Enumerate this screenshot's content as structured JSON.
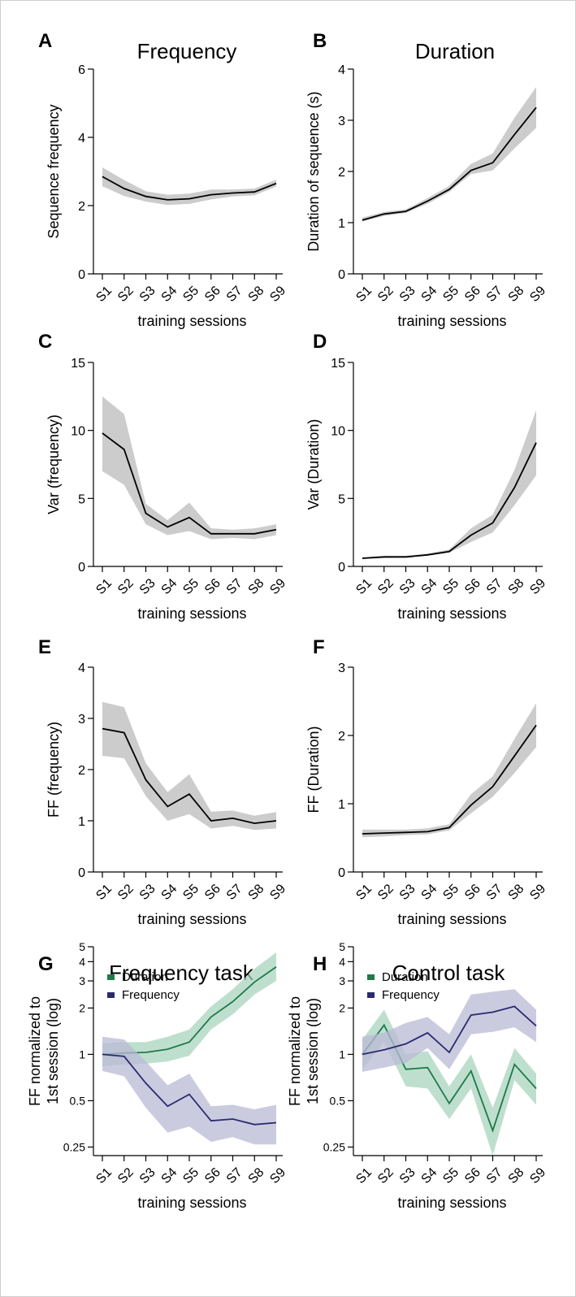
{
  "sessions": [
    "S1",
    "S2",
    "S3",
    "S4",
    "S5",
    "S6",
    "S7",
    "S8",
    "S9"
  ],
  "colors": {
    "mean_line": "#000000",
    "ci_band": "#cccccc",
    "duration": "#1f7a4a",
    "duration_band": "#a9d4bd",
    "frequency": "#2b2a6e",
    "frequency_band": "#b9b9d6"
  },
  "chart_data": [
    {
      "panel": "A",
      "type": "area",
      "title": "Frequency",
      "xlabel": "training sessions",
      "ylabel": "Sequence frequency",
      "ylim": [
        0,
        6
      ],
      "yticks": [
        "0",
        "2",
        "4",
        "6"
      ],
      "series": [
        {
          "values": [
            2.85,
            2.5,
            2.27,
            2.17,
            2.2,
            2.32,
            2.37,
            2.4,
            2.65
          ],
          "lower": [
            2.57,
            2.28,
            2.12,
            2.02,
            2.05,
            2.18,
            2.27,
            2.3,
            2.56
          ],
          "upper": [
            3.12,
            2.75,
            2.42,
            2.32,
            2.35,
            2.47,
            2.47,
            2.5,
            2.76
          ]
        }
      ]
    },
    {
      "panel": "B",
      "type": "area",
      "title": "Duration",
      "xlabel": "training sessions",
      "ylabel": "Duration of sequence (s)",
      "ylim": [
        0,
        4
      ],
      "yticks": [
        "0",
        "1",
        "2",
        "3",
        "4"
      ],
      "series": [
        {
          "values": [
            1.05,
            1.17,
            1.22,
            1.42,
            1.65,
            2.02,
            2.17,
            2.72,
            3.25
          ],
          "lower": [
            1.02,
            1.13,
            1.19,
            1.37,
            1.6,
            1.95,
            2.02,
            2.45,
            2.85
          ],
          "upper": [
            1.1,
            1.21,
            1.26,
            1.48,
            1.72,
            2.15,
            2.35,
            3.05,
            3.65
          ]
        }
      ]
    },
    {
      "panel": "C",
      "type": "area",
      "title": "",
      "xlabel": "training sessions",
      "ylabel": "Var (frequency)",
      "ylim": [
        0,
        15
      ],
      "yticks": [
        "0",
        "5",
        "10",
        "15"
      ],
      "series": [
        {
          "values": [
            9.8,
            8.6,
            3.9,
            2.9,
            3.6,
            2.4,
            2.4,
            2.4,
            2.7
          ],
          "lower": [
            7.0,
            6.0,
            3.1,
            2.3,
            2.6,
            2.0,
            2.1,
            2.0,
            2.3
          ],
          "upper": [
            12.5,
            11.2,
            4.6,
            3.4,
            4.7,
            2.8,
            2.7,
            2.8,
            3.1
          ]
        }
      ]
    },
    {
      "panel": "D",
      "type": "area",
      "title": "",
      "xlabel": "training sessions",
      "ylabel": "Var (Duration)",
      "ylim": [
        0,
        15
      ],
      "yticks": [
        "0",
        "5",
        "10",
        "15"
      ],
      "series": [
        {
          "values": [
            0.6,
            0.7,
            0.7,
            0.85,
            1.1,
            2.3,
            3.2,
            5.8,
            9.1
          ],
          "lower": [
            0.55,
            0.62,
            0.64,
            0.78,
            1.0,
            1.8,
            2.5,
            4.5,
            6.7
          ],
          "upper": [
            0.68,
            0.78,
            0.78,
            0.95,
            1.25,
            2.8,
            3.8,
            7.1,
            11.5
          ]
        }
      ]
    },
    {
      "panel": "E",
      "type": "area",
      "title": "",
      "xlabel": "training sessions",
      "ylabel": "FF (frequency)",
      "ylim": [
        0,
        4
      ],
      "yticks": [
        "0",
        "1",
        "2",
        "3",
        "4"
      ],
      "series": [
        {
          "values": [
            2.8,
            2.72,
            1.8,
            1.28,
            1.52,
            1.0,
            1.05,
            0.95,
            1.0
          ],
          "lower": [
            2.27,
            2.22,
            1.48,
            1.0,
            1.13,
            0.85,
            0.9,
            0.82,
            0.85
          ],
          "upper": [
            3.32,
            3.22,
            2.12,
            1.56,
            1.91,
            1.18,
            1.2,
            1.1,
            1.17
          ]
        }
      ]
    },
    {
      "panel": "F",
      "type": "area",
      "title": "",
      "xlabel": "training sessions",
      "ylabel": "FF (Duration)",
      "ylim": [
        0,
        3
      ],
      "yticks": [
        "0",
        "1",
        "2",
        "3"
      ],
      "series": [
        {
          "values": [
            0.56,
            0.57,
            0.58,
            0.59,
            0.65,
            0.98,
            1.25,
            1.7,
            2.15
          ],
          "lower": [
            0.51,
            0.52,
            0.54,
            0.55,
            0.61,
            0.86,
            1.1,
            1.45,
            1.83
          ],
          "upper": [
            0.62,
            0.62,
            0.62,
            0.64,
            0.7,
            1.14,
            1.4,
            1.95,
            2.47
          ]
        }
      ]
    },
    {
      "panel": "G",
      "type": "area",
      "title": "Frequency task",
      "xlabel": "training sessions",
      "ylabel": "FF normalized to\n1st session (log)",
      "yscale": "log",
      "ylim": [
        0.22,
        5
      ],
      "yticks": [
        0.25,
        0.5,
        1,
        2,
        3,
        4,
        5
      ],
      "yticklabels": [
        "0.25",
        "0.5",
        "1",
        "2",
        "3",
        "4",
        "5"
      ],
      "legend": {
        "placement": "top-left"
      },
      "series": [
        {
          "name": "Duration",
          "color": "duration",
          "values": [
            1.0,
            1.02,
            1.03,
            1.08,
            1.2,
            1.75,
            2.2,
            2.95,
            3.7
          ],
          "lower": [
            0.84,
            0.86,
            0.87,
            0.9,
            0.98,
            1.45,
            1.82,
            2.45,
            3.0
          ],
          "upper": [
            1.18,
            1.2,
            1.2,
            1.3,
            1.45,
            2.05,
            2.65,
            3.6,
            4.6
          ]
        },
        {
          "name": "Frequency",
          "color": "frequency",
          "values": [
            1.0,
            0.97,
            0.65,
            0.46,
            0.55,
            0.37,
            0.38,
            0.35,
            0.36
          ],
          "lower": [
            0.78,
            0.72,
            0.45,
            0.31,
            0.34,
            0.27,
            0.29,
            0.26,
            0.26
          ],
          "upper": [
            1.3,
            1.25,
            0.9,
            0.63,
            0.75,
            0.46,
            0.47,
            0.44,
            0.47
          ]
        }
      ]
    },
    {
      "panel": "H",
      "type": "area",
      "title": "Control task",
      "xlabel": "training sessions",
      "ylabel": "FF normalized to\n1st session (log)",
      "yscale": "log",
      "ylim": [
        0.22,
        5
      ],
      "yticks": [
        0.25,
        0.5,
        1,
        2,
        3,
        4,
        5
      ],
      "yticklabels": [
        "0.25",
        "0.5",
        "1",
        "2",
        "3",
        "4",
        "5"
      ],
      "legend": {
        "placement": "top-left"
      },
      "series": [
        {
          "name": "Duration",
          "color": "duration",
          "values": [
            1.0,
            1.55,
            0.8,
            0.82,
            0.48,
            0.78,
            0.32,
            0.86,
            0.6
          ],
          "lower": [
            0.8,
            1.2,
            0.62,
            0.6,
            0.38,
            0.6,
            0.22,
            0.68,
            0.47
          ],
          "upper": [
            1.25,
            1.95,
            1.0,
            1.05,
            0.62,
            1.0,
            0.45,
            1.1,
            0.75
          ]
        },
        {
          "name": "Frequency",
          "color": "frequency",
          "values": [
            1.0,
            1.07,
            1.17,
            1.38,
            1.03,
            1.8,
            1.88,
            2.05,
            1.53
          ],
          "lower": [
            0.77,
            0.82,
            0.88,
            1.1,
            0.8,
            1.35,
            1.4,
            1.5,
            1.2
          ],
          "upper": [
            1.3,
            1.38,
            1.6,
            1.75,
            1.35,
            2.45,
            2.55,
            2.65,
            1.95
          ]
        }
      ]
    }
  ]
}
